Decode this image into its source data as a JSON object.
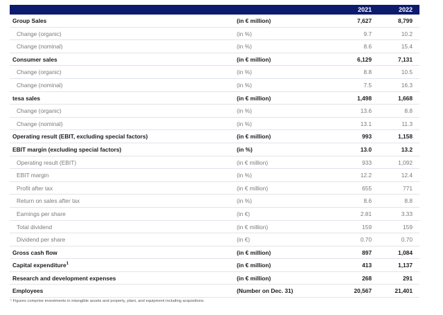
{
  "header": {
    "year1": "2021",
    "year2": "2022"
  },
  "rows": [
    {
      "style": "bold",
      "label": "Group Sales",
      "unit": "(in € million)",
      "v2021": "7,627",
      "v2022": "8,799"
    },
    {
      "style": "sub",
      "label": "Change (organic)",
      "unit": "(in %)",
      "v2021": "9.7",
      "v2022": "10.2"
    },
    {
      "style": "sub",
      "label": "Change (nominal)",
      "unit": "(in %)",
      "v2021": "8.6",
      "v2022": "15.4"
    },
    {
      "style": "bold",
      "label": "Consumer sales",
      "unit": "(in € million)",
      "v2021": "6,129",
      "v2022": "7,131"
    },
    {
      "style": "sub",
      "label": "Change (organic)",
      "unit": "(in %)",
      "v2021": "8.8",
      "v2022": "10.5"
    },
    {
      "style": "sub",
      "label": "Change (nominal)",
      "unit": "(in %)",
      "v2021": "7.5",
      "v2022": "16.3"
    },
    {
      "style": "bold",
      "label": "tesa sales",
      "unit": "(in € million)",
      "v2021": "1,498",
      "v2022": "1,668"
    },
    {
      "style": "sub",
      "label": "Change (organic)",
      "unit": "(in %)",
      "v2021": "13.6",
      "v2022": "8.8"
    },
    {
      "style": "sub",
      "label": "Change (nominal)",
      "unit": "(in %)",
      "v2021": "13.1",
      "v2022": "11.3"
    },
    {
      "style": "bold",
      "label": "Operating result (EBIT, excluding special factors)",
      "unit": "(in € million)",
      "v2021": "993",
      "v2022": "1,158"
    },
    {
      "style": "bold",
      "label": "EBIT margin (excluding special factors)",
      "unit": "(in %)",
      "v2021": "13.0",
      "v2022": "13.2"
    },
    {
      "style": "sub",
      "label": "Operating result (EBIT)",
      "unit": "(in € million)",
      "v2021": "933",
      "v2022": "1,092"
    },
    {
      "style": "sub",
      "label": "EBIT margin",
      "unit": "(in %)",
      "v2021": "12.2",
      "v2022": "12.4"
    },
    {
      "style": "sub",
      "label": "Profit after tax",
      "unit": "(in € million)",
      "v2021": "655",
      "v2022": "771"
    },
    {
      "style": "sub",
      "label": "Return on sales after tax",
      "unit": "(in %)",
      "v2021": "8.6",
      "v2022": "8.8"
    },
    {
      "style": "sub",
      "label": "Earnings per share",
      "unit": "(in €)",
      "v2021": "2.81",
      "v2022": "3.33"
    },
    {
      "style": "sub",
      "label": "Total dividend",
      "unit": "(in € million)",
      "v2021": "159",
      "v2022": "159"
    },
    {
      "style": "sub",
      "label": "Dividend per share",
      "unit": "(in €)",
      "v2021": "0.70",
      "v2022": "0.70"
    },
    {
      "style": "bold",
      "label": "Gross cash flow",
      "unit": "(in € million)",
      "v2021": "897",
      "v2022": "1,084"
    },
    {
      "style": "bold",
      "label": "Capital expenditure",
      "sup": "1",
      "unit": "(in € million)",
      "v2021": "413",
      "v2022": "1,137"
    },
    {
      "style": "bold",
      "label": "Research and development expenses",
      "unit": "(in € million)",
      "v2021": "268",
      "v2022": "291"
    },
    {
      "style": "bold",
      "label": "Employees",
      "unit": "(Number on Dec. 31)",
      "v2021": "20,567",
      "v2022": "21,401"
    }
  ],
  "footnote": "¹ Figures comprise investments in intangible assets and property, plant, and equipment including acquisitions."
}
